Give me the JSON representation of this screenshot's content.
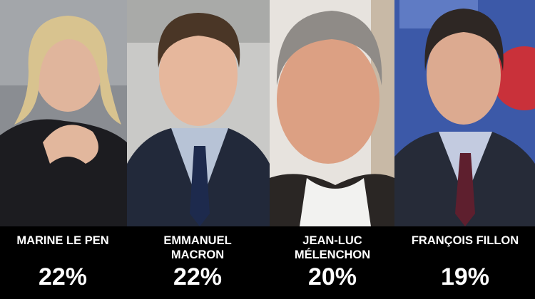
{
  "panels": [
    {
      "name": [
        "MARINE LE PEN"
      ],
      "share": "22%"
    },
    {
      "name": [
        "EMMANUEL",
        "MACRON"
      ],
      "share": "22%"
    },
    {
      "name": [
        "JEAN-LUC",
        "MÉLENCHON"
      ],
      "share": "20%"
    },
    {
      "name": [
        "FRANÇOIS FILLON"
      ],
      "share": "19%"
    }
  ]
}
